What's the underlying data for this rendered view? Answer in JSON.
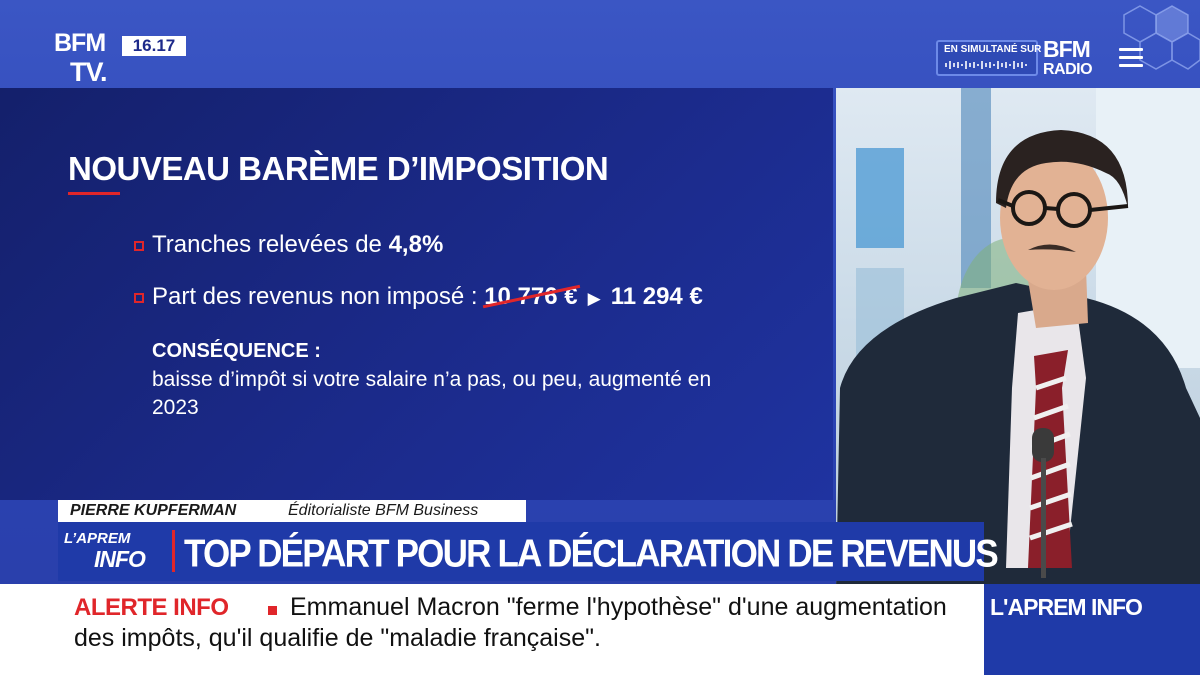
{
  "channel": {
    "logo_line1": "BFM",
    "logo_line2": "TV.",
    "clock": "16.17"
  },
  "simulcast": {
    "label": "EN SIMULTANÉ SUR",
    "brand": "BFM",
    "brand_name": "RADIO"
  },
  "panel": {
    "title": "NOUVEAU BARÈME D’IMPOSITION",
    "line1_text": "Tranches relevées de ",
    "line1_value": "4,8%",
    "line2_text": "Part des revenus non imposé : ",
    "line2_old_value": "10 776 €",
    "line2_new_value": "11 294 €",
    "consequence_label": "CONSÉQUENCE :",
    "consequence_text": "baisse d’impôt si votre salaire n’a pas, ou peu, augmenté en 2023"
  },
  "guest": {
    "name": "PIERRE KUPFERMAN",
    "role": "Éditorialiste BFM Business"
  },
  "show": {
    "logo_top": "L’APREM",
    "logo_bottom": "INFO"
  },
  "headline": "TOP DÉPART POUR LA DÉCLARATION DE REVENUS",
  "ticker": {
    "label": "ALERTE INFO",
    "text": "Emmanuel Macron \"ferme l'hypothèse\" d'une augmentation des impôts, qu'il qualifie de \"maladie française\".",
    "tag": "L'APREM INFO"
  },
  "colors": {
    "accent_red": "#e0262a",
    "brand_blue": "#1f3aa8",
    "panel_navy": "#14206b"
  }
}
